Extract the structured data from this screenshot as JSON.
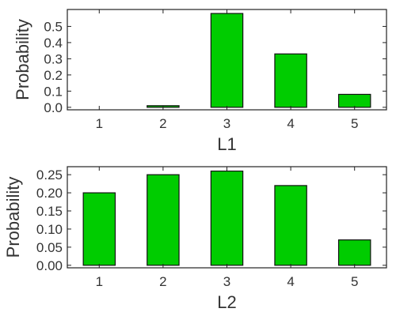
{
  "chart_data": [
    {
      "type": "bar",
      "categories": [
        "1",
        "2",
        "3",
        "4",
        "5"
      ],
      "values": [
        0.0,
        0.01,
        0.58,
        0.33,
        0.08
      ],
      "xlabel": "L1",
      "ylabel": "Probability",
      "ylim": [
        0,
        0.6
      ],
      "yticks": [
        0.0,
        0.1,
        0.2,
        0.3,
        0.4,
        0.5
      ],
      "ytick_labels": [
        "0.0",
        "0.1",
        "0.2",
        "0.3",
        "0.4",
        "0.5"
      ],
      "bar_color": "#00cc00",
      "grid": false
    },
    {
      "type": "bar",
      "categories": [
        "1",
        "2",
        "3",
        "4",
        "5"
      ],
      "values": [
        0.2,
        0.25,
        0.26,
        0.22,
        0.07
      ],
      "xlabel": "L2",
      "ylabel": "Probability",
      "ylim": [
        0,
        0.27
      ],
      "yticks": [
        0.0,
        0.05,
        0.1,
        0.15,
        0.2,
        0.25
      ],
      "ytick_labels": [
        "0.00",
        "0.05",
        "0.10",
        "0.15",
        "0.20",
        "0.25"
      ],
      "bar_color": "#00cc00",
      "grid": false
    }
  ]
}
